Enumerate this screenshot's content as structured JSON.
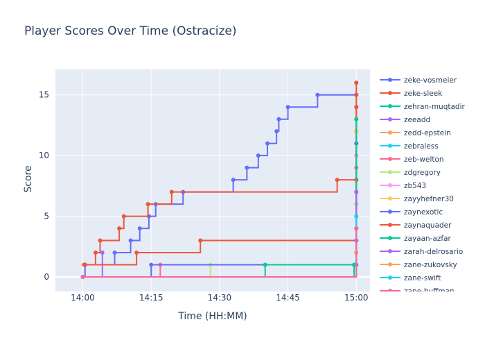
{
  "chart_data": {
    "type": "line",
    "line_shape": "step",
    "title": "Player Scores Over Time (Ostracize)",
    "xlabel": "Time (HH:MM)",
    "ylabel": "Score",
    "x_unit": "minutes after 14:00",
    "xlim": [
      -6,
      63
    ],
    "ylim": [
      -1.2,
      17.1
    ],
    "x_ticks": [
      {
        "value": 0,
        "label": "14:00"
      },
      {
        "value": 15,
        "label": "14:15"
      },
      {
        "value": 30,
        "label": "14:30"
      },
      {
        "value": 45,
        "label": "14:45"
      },
      {
        "value": 60,
        "label": "15:00"
      }
    ],
    "y_ticks": [
      0,
      5,
      10,
      15
    ],
    "grid": true,
    "legend_position": "right",
    "plot_bgcolor": "#E5ECF6",
    "series": [
      {
        "name": "zeke-vosmeier",
        "color": "#636efa",
        "x": [
          0,
          0.5,
          7,
          10.5,
          12.5,
          14.5,
          16,
          22,
          33,
          36,
          38.5,
          40.5,
          42.5,
          43,
          45,
          51.5,
          60
        ],
        "y": [
          0,
          1,
          2,
          3,
          4,
          5,
          6,
          7,
          8,
          9,
          10,
          11,
          12,
          13,
          14,
          15,
          15
        ]
      },
      {
        "name": "zeke-sleek",
        "color": "#EF553B",
        "x": [
          0.3,
          2.8,
          3.8,
          8,
          9,
          14.3,
          19.5,
          55.8,
          60,
          60,
          60,
          60,
          60,
          60,
          60,
          60,
          60,
          60
        ],
        "y": [
          1,
          2,
          3,
          4,
          5,
          6,
          7,
          8,
          8,
          9,
          10,
          11,
          12,
          13,
          14,
          15,
          16,
          16
        ]
      },
      {
        "name": "zehran-muqtadir",
        "color": "#00cc96",
        "x": [
          0,
          59.5,
          60,
          60,
          60,
          60,
          60
        ],
        "y": [
          0,
          1,
          2,
          3,
          4,
          5,
          6
        ]
      },
      {
        "name": "zeeadd",
        "color": "#ab63fa",
        "x": [
          0,
          4.3
        ],
        "y": [
          0,
          2
        ]
      },
      {
        "name": "zedd-epstein",
        "color": "#FFA15A",
        "x": [
          0,
          60,
          60,
          60,
          60
        ],
        "y": [
          0,
          2,
          5,
          12,
          12
        ]
      },
      {
        "name": "zebraless",
        "color": "#19d3f3",
        "x": [
          0,
          60,
          60
        ],
        "y": [
          0,
          7,
          7
        ]
      },
      {
        "name": "zeb-welton",
        "color": "#FF6692",
        "x": [
          0,
          17,
          60,
          60,
          60
        ],
        "y": [
          0,
          1,
          4,
          9,
          10
        ]
      },
      {
        "name": "zdgregory",
        "color": "#B6E880",
        "x": [
          0,
          28,
          60,
          60
        ],
        "y": [
          0,
          1,
          6,
          13
        ]
      },
      {
        "name": "zb543",
        "color": "#FF97FF",
        "x": [
          0,
          60,
          60
        ],
        "y": [
          0,
          7,
          10
        ]
      },
      {
        "name": "zayyhefner30",
        "color": "#FECB52",
        "x": [
          0,
          60
        ],
        "y": [
          0,
          12
        ]
      },
      {
        "name": "zaynexotic",
        "color": "#636efa",
        "x": [
          0,
          15,
          60,
          60,
          60
        ],
        "y": [
          0,
          1,
          1,
          3,
          11
        ]
      },
      {
        "name": "zaynaquader",
        "color": "#EF553B",
        "x": [
          0.5,
          11.8,
          25.8,
          60,
          60
        ],
        "y": [
          1,
          2,
          3,
          8,
          14
        ]
      },
      {
        "name": "zayaan-azfar",
        "color": "#00cc96",
        "x": [
          0,
          40,
          60
        ],
        "y": [
          0,
          1,
          13
        ]
      },
      {
        "name": "zarah-delrosario",
        "color": "#ab63fa",
        "x": [
          0,
          60,
          60
        ],
        "y": [
          0,
          3,
          7
        ]
      },
      {
        "name": "zane-zukovsky",
        "color": "#FFA15A",
        "x": [
          0,
          60
        ],
        "y": [
          0,
          2
        ]
      },
      {
        "name": "zane-swift",
        "color": "#19d3f3",
        "x": [
          0,
          60
        ],
        "y": [
          0,
          5
        ]
      },
      {
        "name": "zane-huffman",
        "color": "#FF6692",
        "x": [
          0,
          60
        ],
        "y": [
          0,
          4
        ]
      }
    ]
  }
}
